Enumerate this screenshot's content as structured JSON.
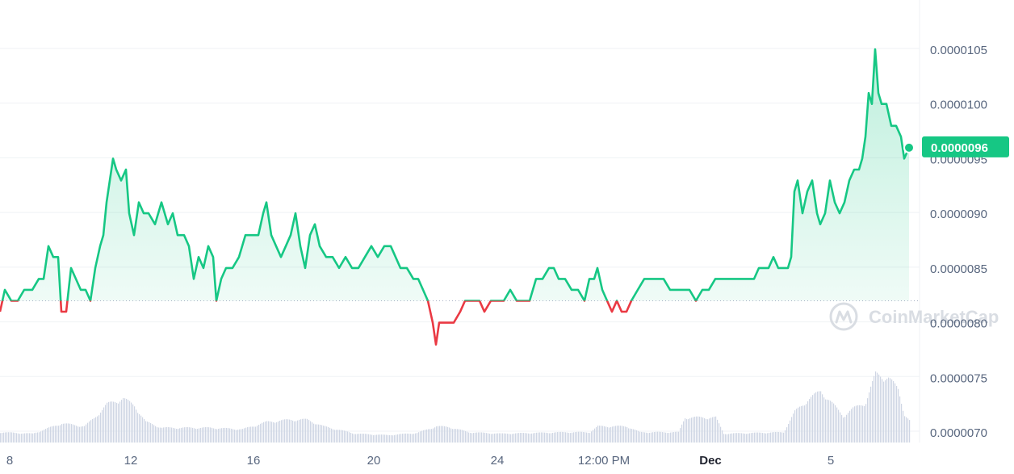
{
  "chart_data": {
    "type": "line",
    "y_range": [
      6.8e-06,
      1.08e-05
    ],
    "x_domain": [
      0,
      1126
    ],
    "baseline": 8.2e-06,
    "y_ticks": [
      "0.0000070",
      "0.0000075",
      "0.0000080",
      "0.0000085",
      "0.0000090",
      "0.0000095",
      "0.0000100",
      "0.0000105"
    ],
    "x_ticks": [
      {
        "label": "8",
        "bold": false
      },
      {
        "label": "12",
        "bold": false
      },
      {
        "label": "16",
        "bold": false
      },
      {
        "label": "20",
        "bold": false
      },
      {
        "label": "24",
        "bold": false
      },
      {
        "label": "12:00 PM",
        "bold": false
      },
      {
        "label": "Dec",
        "bold": true
      },
      {
        "label": "5",
        "bold": false
      }
    ],
    "current_price_label": "0.0000096",
    "current_price": 9.6e-06,
    "watermark": "CoinMarketCap",
    "colors": {
      "up": "#16c784",
      "down": "#ea3943",
      "volume": "#cfd6e4",
      "grid": "#eff2f5",
      "baseline_dotted": "#a6b0c3",
      "axis_text": "#58667e"
    },
    "price_series": [
      [
        0,
        8.1e-06
      ],
      [
        6,
        8.3e-06
      ],
      [
        14,
        8.2e-06
      ],
      [
        22,
        8.2e-06
      ],
      [
        30,
        8.3e-06
      ],
      [
        40,
        8.3e-06
      ],
      [
        48,
        8.4e-06
      ],
      [
        54,
        8.4e-06
      ],
      [
        60,
        8.7e-06
      ],
      [
        66,
        8.6e-06
      ],
      [
        72,
        8.6e-06
      ],
      [
        76,
        8.1e-06
      ],
      [
        82,
        8.1e-06
      ],
      [
        88,
        8.5e-06
      ],
      [
        94,
        8.4e-06
      ],
      [
        100,
        8.3e-06
      ],
      [
        106,
        8.3e-06
      ],
      [
        112,
        8.2e-06
      ],
      [
        118,
        8.5e-06
      ],
      [
        124,
        8.7e-06
      ],
      [
        128,
        8.8e-06
      ],
      [
        132,
        9.1e-06
      ],
      [
        136,
        9.3e-06
      ],
      [
        140,
        9.5e-06
      ],
      [
        144,
        9.4e-06
      ],
      [
        150,
        9.3e-06
      ],
      [
        156,
        9.4e-06
      ],
      [
        160,
        9e-06
      ],
      [
        166,
        8.8e-06
      ],
      [
        172,
        9.1e-06
      ],
      [
        178,
        9e-06
      ],
      [
        184,
        9e-06
      ],
      [
        192,
        8.9e-06
      ],
      [
        200,
        9.1e-06
      ],
      [
        208,
        8.9e-06
      ],
      [
        214,
        9e-06
      ],
      [
        220,
        8.8e-06
      ],
      [
        228,
        8.8e-06
      ],
      [
        234,
        8.7e-06
      ],
      [
        240,
        8.4e-06
      ],
      [
        246,
        8.6e-06
      ],
      [
        252,
        8.5e-06
      ],
      [
        258,
        8.7e-06
      ],
      [
        264,
        8.6e-06
      ],
      [
        268,
        8.2e-06
      ],
      [
        274,
        8.4e-06
      ],
      [
        280,
        8.5e-06
      ],
      [
        288,
        8.5e-06
      ],
      [
        296,
        8.6e-06
      ],
      [
        304,
        8.8e-06
      ],
      [
        312,
        8.8e-06
      ],
      [
        320,
        8.8e-06
      ],
      [
        326,
        9e-06
      ],
      [
        330,
        9.1e-06
      ],
      [
        336,
        8.8e-06
      ],
      [
        342,
        8.7e-06
      ],
      [
        348,
        8.6e-06
      ],
      [
        354,
        8.7e-06
      ],
      [
        360,
        8.8e-06
      ],
      [
        366,
        9e-06
      ],
      [
        372,
        8.7e-06
      ],
      [
        378,
        8.5e-06
      ],
      [
        384,
        8.8e-06
      ],
      [
        390,
        8.9e-06
      ],
      [
        396,
        8.7e-06
      ],
      [
        404,
        8.6e-06
      ],
      [
        412,
        8.6e-06
      ],
      [
        420,
        8.5e-06
      ],
      [
        428,
        8.6e-06
      ],
      [
        436,
        8.5e-06
      ],
      [
        444,
        8.5e-06
      ],
      [
        452,
        8.6e-06
      ],
      [
        460,
        8.7e-06
      ],
      [
        468,
        8.6e-06
      ],
      [
        476,
        8.7e-06
      ],
      [
        484,
        8.7e-06
      ],
      [
        490,
        8.6e-06
      ],
      [
        496,
        8.5e-06
      ],
      [
        504,
        8.5e-06
      ],
      [
        512,
        8.4e-06
      ],
      [
        518,
        8.4e-06
      ],
      [
        524,
        8.3e-06
      ],
      [
        530,
        8.2e-06
      ],
      [
        536,
        8e-06
      ],
      [
        540,
        7.8e-06
      ],
      [
        544,
        8e-06
      ],
      [
        550,
        8e-06
      ],
      [
        556,
        8e-06
      ],
      [
        562,
        8e-06
      ],
      [
        570,
        8.1e-06
      ],
      [
        576,
        8.2e-06
      ],
      [
        582,
        8.2e-06
      ],
      [
        588,
        8.2e-06
      ],
      [
        594,
        8.2e-06
      ],
      [
        600,
        8.1e-06
      ],
      [
        608,
        8.2e-06
      ],
      [
        616,
        8.2e-06
      ],
      [
        624,
        8.2e-06
      ],
      [
        632,
        8.3e-06
      ],
      [
        640,
        8.2e-06
      ],
      [
        648,
        8.2e-06
      ],
      [
        656,
        8.2e-06
      ],
      [
        664,
        8.4e-06
      ],
      [
        672,
        8.4e-06
      ],
      [
        680,
        8.5e-06
      ],
      [
        686,
        8.5e-06
      ],
      [
        692,
        8.4e-06
      ],
      [
        700,
        8.4e-06
      ],
      [
        708,
        8.3e-06
      ],
      [
        716,
        8.3e-06
      ],
      [
        724,
        8.2e-06
      ],
      [
        730,
        8.4e-06
      ],
      [
        736,
        8.4e-06
      ],
      [
        740,
        8.5e-06
      ],
      [
        746,
        8.3e-06
      ],
      [
        752,
        8.2e-06
      ],
      [
        758,
        8.1e-06
      ],
      [
        764,
        8.2e-06
      ],
      [
        770,
        8.1e-06
      ],
      [
        776,
        8.1e-06
      ],
      [
        782,
        8.2e-06
      ],
      [
        790,
        8.3e-06
      ],
      [
        798,
        8.4e-06
      ],
      [
        806,
        8.4e-06
      ],
      [
        814,
        8.4e-06
      ],
      [
        822,
        8.4e-06
      ],
      [
        830,
        8.3e-06
      ],
      [
        838,
        8.3e-06
      ],
      [
        846,
        8.3e-06
      ],
      [
        854,
        8.3e-06
      ],
      [
        862,
        8.2e-06
      ],
      [
        870,
        8.3e-06
      ],
      [
        878,
        8.3e-06
      ],
      [
        886,
        8.4e-06
      ],
      [
        894,
        8.4e-06
      ],
      [
        902,
        8.4e-06
      ],
      [
        910,
        8.4e-06
      ],
      [
        918,
        8.4e-06
      ],
      [
        926,
        8.4e-06
      ],
      [
        934,
        8.4e-06
      ],
      [
        940,
        8.5e-06
      ],
      [
        946,
        8.5e-06
      ],
      [
        952,
        8.5e-06
      ],
      [
        958,
        8.6e-06
      ],
      [
        964,
        8.5e-06
      ],
      [
        970,
        8.5e-06
      ],
      [
        976,
        8.5e-06
      ],
      [
        980,
        8.6e-06
      ],
      [
        984,
        9.2e-06
      ],
      [
        988,
        9.3e-06
      ],
      [
        994,
        9e-06
      ],
      [
        1000,
        9.2e-06
      ],
      [
        1006,
        9.3e-06
      ],
      [
        1012,
        9e-06
      ],
      [
        1016,
        8.9e-06
      ],
      [
        1022,
        9e-06
      ],
      [
        1028,
        9.3e-06
      ],
      [
        1034,
        9.1e-06
      ],
      [
        1040,
        9e-06
      ],
      [
        1046,
        9.1e-06
      ],
      [
        1052,
        9.3e-06
      ],
      [
        1058,
        9.4e-06
      ],
      [
        1064,
        9.4e-06
      ],
      [
        1068,
        9.5e-06
      ],
      [
        1072,
        9.7e-06
      ],
      [
        1076,
        1.01e-05
      ],
      [
        1080,
        1e-05
      ],
      [
        1084,
        1.05e-05
      ],
      [
        1088,
        1.01e-05
      ],
      [
        1092,
        1e-05
      ],
      [
        1098,
        1e-05
      ],
      [
        1104,
        9.8e-06
      ],
      [
        1110,
        9.8e-06
      ],
      [
        1116,
        9.7e-06
      ],
      [
        1120,
        9.5e-06
      ],
      [
        1126,
        9.6e-06
      ]
    ],
    "volume_series": [
      [
        0,
        0.14
      ],
      [
        40,
        0.12
      ],
      [
        76,
        0.26
      ],
      [
        104,
        0.22
      ],
      [
        116,
        0.33
      ],
      [
        132,
        0.52
      ],
      [
        152,
        0.6
      ],
      [
        166,
        0.5
      ],
      [
        180,
        0.28
      ],
      [
        200,
        0.2
      ],
      [
        260,
        0.2
      ],
      [
        300,
        0.18
      ],
      [
        330,
        0.28
      ],
      [
        360,
        0.31
      ],
      [
        380,
        0.31
      ],
      [
        400,
        0.22
      ],
      [
        440,
        0.12
      ],
      [
        480,
        0.1
      ],
      [
        516,
        0.13
      ],
      [
        540,
        0.22
      ],
      [
        556,
        0.21
      ],
      [
        580,
        0.14
      ],
      [
        620,
        0.12
      ],
      [
        700,
        0.14
      ],
      [
        730,
        0.14
      ],
      [
        740,
        0.22
      ],
      [
        776,
        0.22
      ],
      [
        792,
        0.14
      ],
      [
        840,
        0.14
      ],
      [
        848,
        0.34
      ],
      [
        886,
        0.34
      ],
      [
        896,
        0.12
      ],
      [
        970,
        0.14
      ],
      [
        984,
        0.42
      ],
      [
        1000,
        0.58
      ],
      [
        1016,
        0.7
      ],
      [
        1028,
        0.56
      ],
      [
        1044,
        0.36
      ],
      [
        1056,
        0.46
      ],
      [
        1072,
        0.55
      ],
      [
        1084,
        0.93
      ],
      [
        1100,
        0.88
      ],
      [
        1112,
        0.72
      ],
      [
        1120,
        0.38
      ],
      [
        1126,
        0.3
      ]
    ]
  }
}
